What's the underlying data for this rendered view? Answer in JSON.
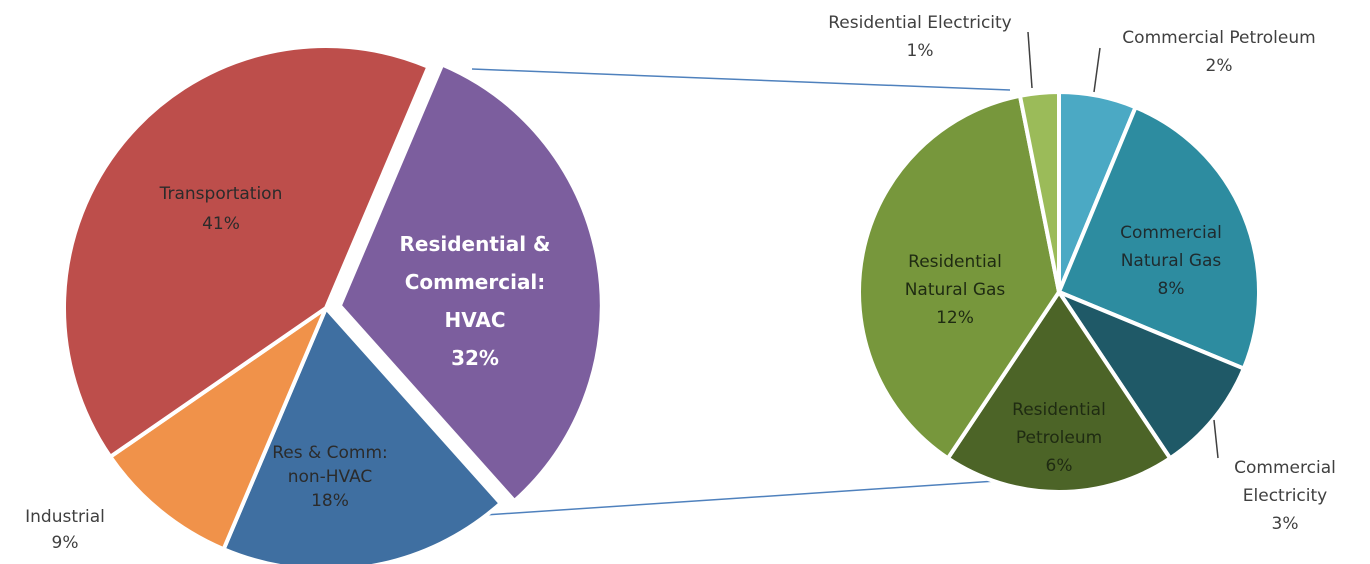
{
  "chart_data": [
    {
      "type": "pie",
      "title": "",
      "slices": [
        {
          "label": [
            "Residential &",
            "Commercial:",
            "HVAC"
          ],
          "pct_text": "32%",
          "value": 32,
          "color": "#7C5E9E"
        },
        {
          "label": [
            "Res & Comm:",
            "non-HVAC"
          ],
          "pct_text": "18%",
          "value": 18,
          "color": "#3F6FA1"
        },
        {
          "label": [
            "Industrial"
          ],
          "pct_text": "9%",
          "value": 9,
          "color": "#F0924A"
        },
        {
          "label": [
            "Transportation"
          ],
          "pct_text": "41%",
          "value": 41,
          "color": "#BD4E4B"
        }
      ]
    },
    {
      "type": "pie",
      "title": "",
      "slices": [
        {
          "label": [
            "Commercial Petroleum"
          ],
          "pct_text": "2%",
          "value": 2,
          "color": "#4BA9C4"
        },
        {
          "label": [
            "Commercial",
            "Natural Gas"
          ],
          "pct_text": "8%",
          "value": 8,
          "color": "#2D8CA0"
        },
        {
          "label": [
            "Commercial",
            "Electricity"
          ],
          "pct_text": "3%",
          "value": 3,
          "color": "#1F5967"
        },
        {
          "label": [
            "Residential",
            "Petroleum"
          ],
          "pct_text": "6%",
          "value": 6,
          "color": "#4C6427"
        },
        {
          "label": [
            "Residential",
            "Natural Gas"
          ],
          "pct_text": "12%",
          "value": 12,
          "color": "#77973C"
        },
        {
          "label": [
            "Residential Electricity"
          ],
          "pct_text": "1%",
          "value": 1,
          "color": "#9BBB59"
        }
      ]
    }
  ],
  "colors": {
    "connector": "#4F81BD",
    "leader": "#404040",
    "separator": "#ffffff"
  }
}
